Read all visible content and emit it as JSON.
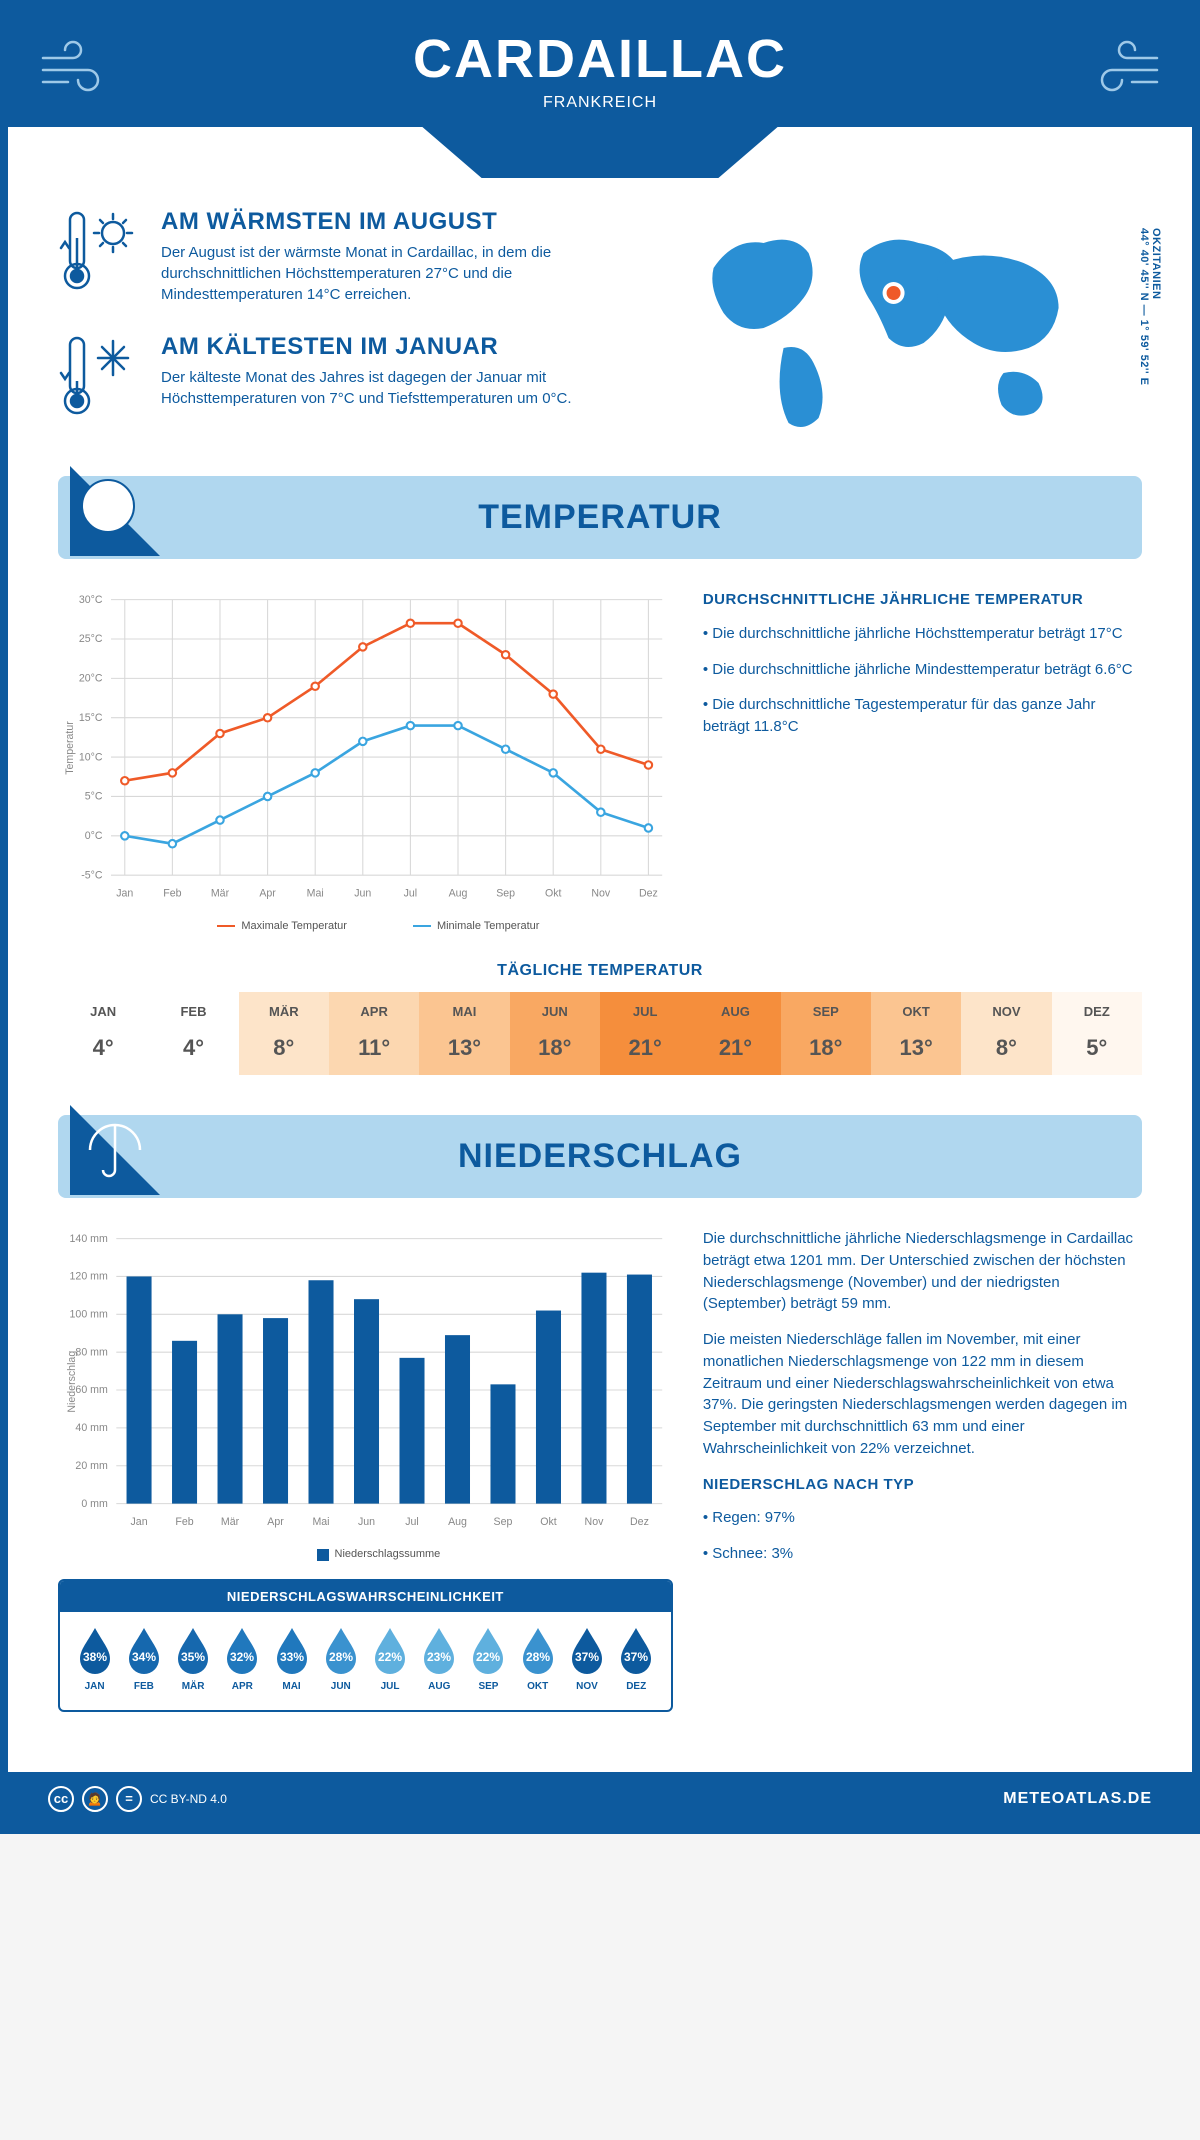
{
  "header": {
    "title": "CARDAILLAC",
    "subtitle": "FRANKREICH"
  },
  "coords": "44° 40' 45'' N — 1° 59' 52'' E",
  "region": "OKZITANIEN",
  "facts": {
    "warm": {
      "title": "AM WÄRMSTEN IM AUGUST",
      "text": "Der August ist der wärmste Monat in Cardaillac, in dem die durchschnittlichen Höchsttemperaturen 27°C und die Mindesttemperaturen 14°C erreichen."
    },
    "cold": {
      "title": "AM KÄLTESTEN IM JANUAR",
      "text": "Der kälteste Monat des Jahres ist dagegen der Januar mit Höchsttemperaturen von 7°C und Tiefsttemperaturen um 0°C."
    }
  },
  "sections": {
    "temperature": "TEMPERATUR",
    "precipitation": "NIEDERSCHLAG"
  },
  "months": [
    "Jan",
    "Feb",
    "Mär",
    "Apr",
    "Mai",
    "Jun",
    "Jul",
    "Aug",
    "Sep",
    "Okt",
    "Nov",
    "Dez"
  ],
  "months_upper": [
    "JAN",
    "FEB",
    "MÄR",
    "APR",
    "MAI",
    "JUN",
    "JUL",
    "AUG",
    "SEP",
    "OKT",
    "NOV",
    "DEZ"
  ],
  "tempChart": {
    "ylabel": "Temperatur",
    "ymin": -5,
    "ymax": 30,
    "ystep": 5,
    "max_series": [
      7,
      8,
      13,
      15,
      19,
      24,
      27,
      27,
      23,
      18,
      11,
      9
    ],
    "min_series": [
      0,
      -1,
      2,
      5,
      8,
      12,
      14,
      14,
      11,
      8,
      3,
      1
    ],
    "max_color": "#ef5a28",
    "min_color": "#3aa5e0",
    "legend_max": "Maximale Temperatur",
    "legend_min": "Minimale Temperatur"
  },
  "tempSide": {
    "heading": "DURCHSCHNITTLICHE JÄHRLICHE TEMPERATUR",
    "b1": "• Die durchschnittliche jährliche Höchsttemperatur beträgt 17°C",
    "b2": "• Die durchschnittliche jährliche Mindesttemperatur beträgt 6.6°C",
    "b3": "• Die durchschnittliche Tagestemperatur für das ganze Jahr beträgt 11.8°C"
  },
  "dailyTemp": {
    "heading": "TÄGLICHE TEMPERATUR",
    "values": [
      4,
      4,
      8,
      11,
      13,
      18,
      21,
      21,
      18,
      13,
      8,
      5
    ],
    "colors": [
      "#ffffff",
      "#ffffff",
      "#fde4c9",
      "#fcd7b0",
      "#fbc591",
      "#f9a862",
      "#f58e3c",
      "#f58e3c",
      "#f9a862",
      "#fbc591",
      "#fde4c9",
      "#fff7ef"
    ]
  },
  "precipChart": {
    "ylabel": "Niederschlag",
    "ymin": 0,
    "ymax": 140,
    "ystep": 20,
    "values": [
      120,
      86,
      100,
      98,
      118,
      108,
      77,
      89,
      63,
      102,
      122,
      121
    ],
    "bar_color": "#0d5a9e",
    "legend": "Niederschlagssumme"
  },
  "precipSide": {
    "p1": "Die durchschnittliche jährliche Niederschlagsmenge in Cardaillac beträgt etwa 1201 mm. Der Unterschied zwischen der höchsten Niederschlagsmenge (November) und der niedrigsten (September) beträgt 59 mm.",
    "p2": "Die meisten Niederschläge fallen im November, mit einer monatlichen Niederschlagsmenge von 122 mm in diesem Zeitraum und einer Niederschlagswahrscheinlichkeit von etwa 37%. Die geringsten Niederschlagsmengen werden dagegen im September mit durchschnittlich 63 mm und einer Wahrscheinlichkeit von 22% verzeichnet.",
    "typ_head": "NIEDERSCHLAG NACH TYP",
    "typ1": "• Regen: 97%",
    "typ2": "• Schnee: 3%"
  },
  "drops": {
    "heading": "NIEDERSCHLAGSWAHRSCHEINLICHKEIT",
    "pct": [
      38,
      34,
      35,
      32,
      33,
      28,
      22,
      23,
      22,
      28,
      37,
      37
    ],
    "colors": [
      "#0d5a9e",
      "#1668ae",
      "#1668ae",
      "#2078bd",
      "#2078bd",
      "#3a92cf",
      "#5fb0de",
      "#5fb0de",
      "#5fb0de",
      "#3a92cf",
      "#0d5a9e",
      "#0d5a9e"
    ]
  },
  "footer": {
    "license": "CC BY-ND 4.0",
    "brand": "METEOATLAS.DE"
  },
  "colors": {
    "primary": "#0d5a9e",
    "light": "#b0d7ef"
  }
}
